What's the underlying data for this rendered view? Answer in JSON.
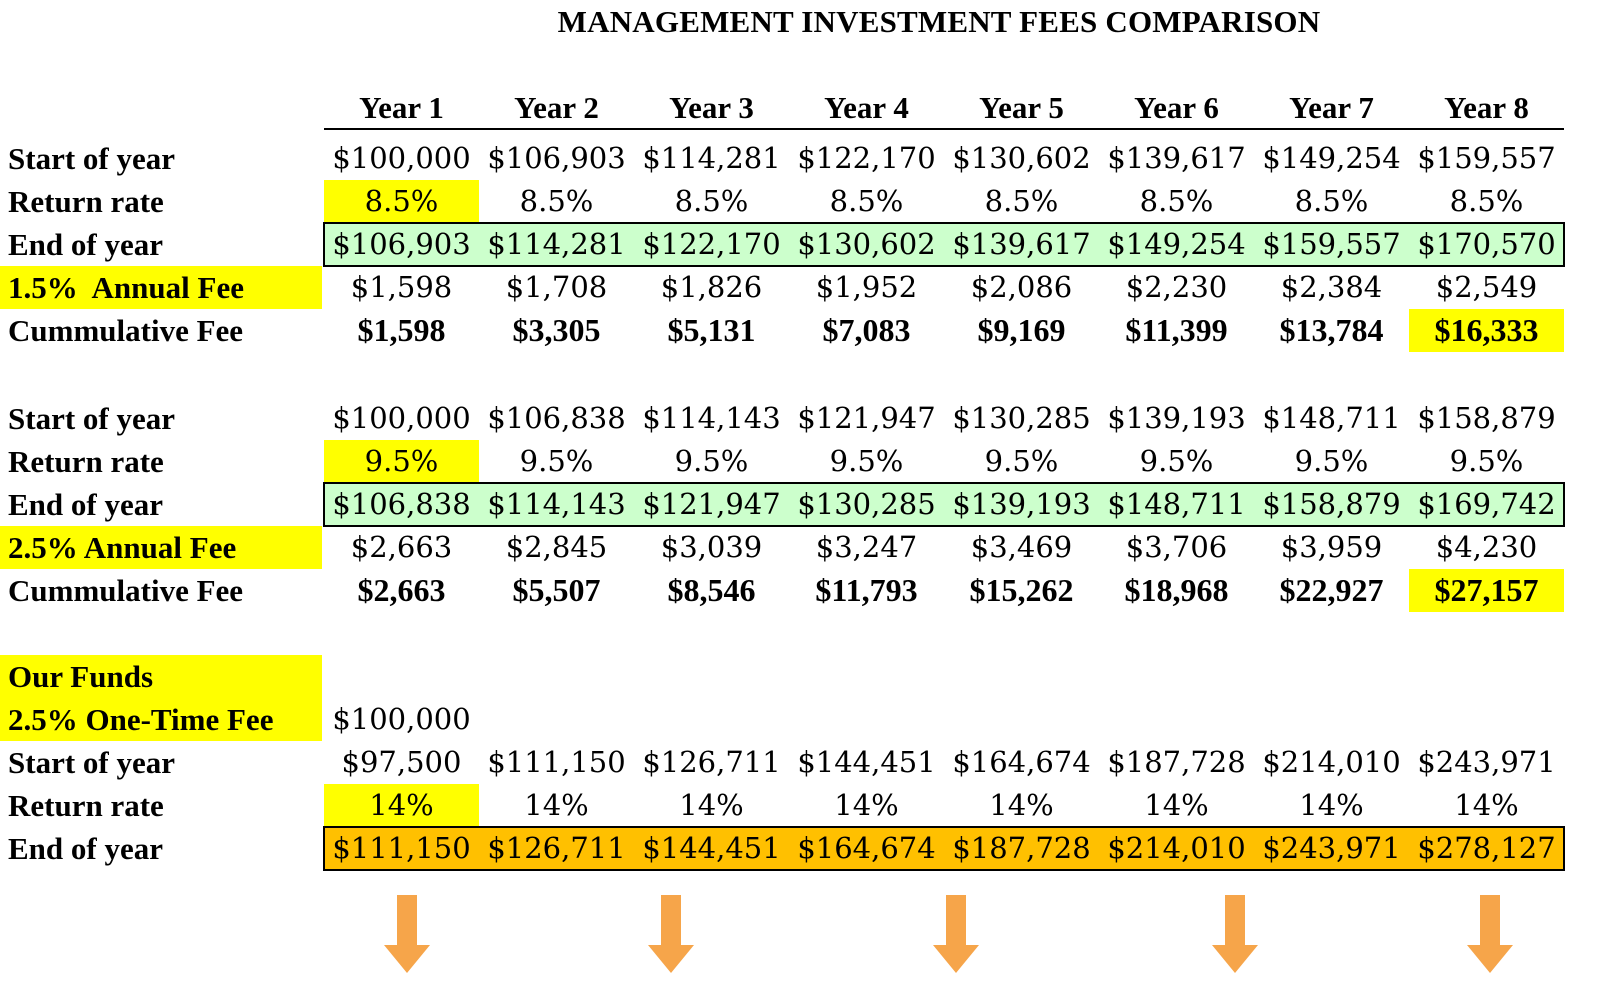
{
  "title": "MANAGEMENT INVESTMENT FEES COMPARISON",
  "years": [
    "Year 1",
    "Year 2",
    "Year 3",
    "Year 4",
    "Year 5",
    "Year 6",
    "Year 7",
    "Year 8"
  ],
  "section1": {
    "start_label": "Start of year",
    "start": [
      "$100,000",
      "$106,903",
      "$114,281",
      "$122,170",
      "$130,602",
      "$139,617",
      "$149,254",
      "$159,557"
    ],
    "rate_label": "Return rate",
    "rate": [
      "8.5%",
      "8.5%",
      "8.5%",
      "8.5%",
      "8.5%",
      "8.5%",
      "8.5%",
      "8.5%"
    ],
    "end_label": "End of year",
    "end": [
      "$106,903",
      "$114,281",
      "$122,170",
      "$130,602",
      "$139,617",
      "$149,254",
      "$159,557",
      "$170,570"
    ],
    "fee_label": "1.5%  Annual Fee",
    "fee": [
      "$1,598",
      "$1,708",
      "$1,826",
      "$1,952",
      "$2,086",
      "$2,230",
      "$2,384",
      "$2,549"
    ],
    "cum_label": "Cummulative Fee",
    "cum": [
      "$1,598",
      "$3,305",
      "$5,131",
      "$7,083",
      "$9,169",
      "$11,399",
      "$13,784",
      "$16,333"
    ]
  },
  "section2": {
    "start_label": "Start of year",
    "start": [
      "$100,000",
      "$106,838",
      "$114,143",
      "$121,947",
      "$130,285",
      "$139,193",
      "$148,711",
      "$158,879"
    ],
    "rate_label": "Return rate",
    "rate": [
      "9.5%",
      "9.5%",
      "9.5%",
      "9.5%",
      "9.5%",
      "9.5%",
      "9.5%",
      "9.5%"
    ],
    "end_label": "End of year",
    "end": [
      "$106,838",
      "$114,143",
      "$121,947",
      "$130,285",
      "$139,193",
      "$148,711",
      "$158,879",
      "$169,742"
    ],
    "fee_label": "2.5% Annual Fee",
    "fee": [
      "$2,663",
      "$2,845",
      "$3,039",
      "$3,247",
      "$3,469",
      "$3,706",
      "$3,959",
      "$4,230"
    ],
    "cum_label": "Cummulative Fee",
    "cum": [
      "$2,663",
      "$5,507",
      "$8,546",
      "$11,793",
      "$15,262",
      "$18,968",
      "$22,927",
      "$27,157"
    ]
  },
  "section3": {
    "funds_label": "Our Funds",
    "onetime_label": "2.5% One-Time Fee",
    "initial": "$100,000",
    "start_label": "Start of year",
    "start": [
      "$97,500",
      "$111,150",
      "$126,711",
      "$144,451",
      "$164,674",
      "$187,728",
      "$214,010",
      "$243,971"
    ],
    "rate_label": "Return rate",
    "rate": [
      "14%",
      "14%",
      "14%",
      "14%",
      "14%",
      "14%",
      "14%",
      "14%"
    ],
    "end_label": "End of year",
    "end": [
      "$111,150",
      "$126,711",
      "$144,451",
      "$164,674",
      "$187,728",
      "$214,010",
      "$243,971",
      "$278,127"
    ]
  },
  "colors": {
    "highlight": "#ffff00",
    "green_fill": "#ccffcc",
    "orange_fill": "#ffc000",
    "arrow": "#f6a54a"
  }
}
